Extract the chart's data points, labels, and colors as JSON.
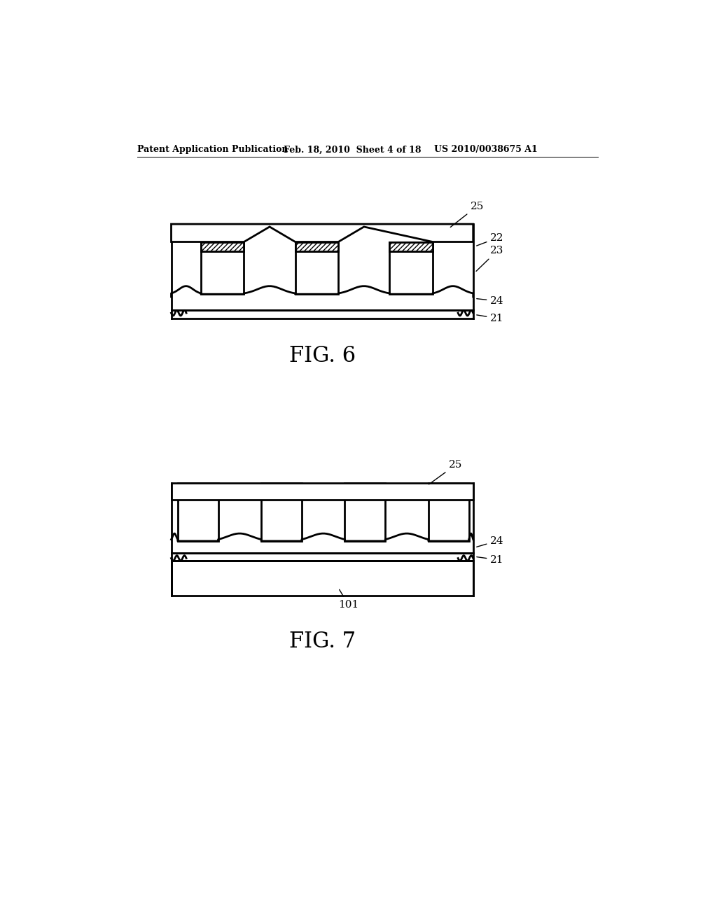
{
  "bg_color": "#ffffff",
  "header_left": "Patent Application Publication",
  "header_mid": "Feb. 18, 2010  Sheet 4 of 18",
  "header_right": "US 2010/0038675 A1",
  "fig6_label": "FIG. 6",
  "fig7_label": "FIG. 7",
  "line_color": "#000000"
}
